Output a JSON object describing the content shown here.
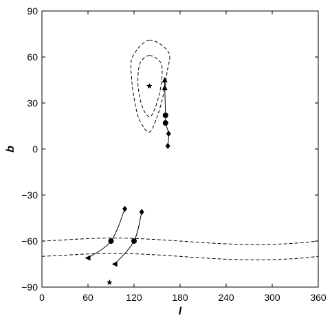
{
  "chart_data": {
    "type": "scatter",
    "xlabel": "l",
    "ylabel": "b",
    "xlim": [
      0,
      360
    ],
    "ylim": [
      -90,
      90
    ],
    "xticks": [
      0,
      60,
      120,
      180,
      240,
      300,
      360
    ],
    "yticks": [
      -90,
      -60,
      -30,
      0,
      30,
      60,
      90
    ],
    "grid": false,
    "legend": "none",
    "contours": [
      {
        "center": [
          140,
          41
        ],
        "values": [
          [
            140,
            71
          ],
          [
            165,
            63
          ],
          [
            163,
            50
          ],
          [
            158,
            35
          ],
          [
            150,
            21
          ],
          [
            140,
            11
          ],
          [
            128,
            18
          ],
          [
            122,
            28
          ],
          [
            117,
            45
          ],
          [
            118,
            60
          ]
        ]
      },
      {
        "center": [
          140,
          41
        ],
        "values": [
          [
            140,
            61
          ],
          [
            155,
            56
          ],
          [
            156,
            45
          ],
          [
            152,
            34
          ],
          [
            146,
            25
          ],
          [
            140,
            21
          ],
          [
            132,
            26
          ],
          [
            127,
            35
          ],
          [
            125,
            45
          ],
          [
            128,
            56
          ]
        ]
      }
    ],
    "band_lines": [
      {
        "values": [
          [
            0,
            -60
          ],
          [
            30,
            -59.2
          ],
          [
            60,
            -58.4
          ],
          [
            90,
            -58
          ],
          [
            120,
            -58.3
          ],
          [
            150,
            -59
          ],
          [
            180,
            -60
          ],
          [
            210,
            -61
          ],
          [
            240,
            -61.8
          ],
          [
            270,
            -62.2
          ],
          [
            300,
            -62.1
          ],
          [
            330,
            -61.4
          ],
          [
            360,
            -60
          ]
        ]
      },
      {
        "values": [
          [
            0,
            -70
          ],
          [
            30,
            -69.2
          ],
          [
            60,
            -68.4
          ],
          [
            90,
            -68
          ],
          [
            120,
            -68.3
          ],
          [
            150,
            -69
          ],
          [
            180,
            -70
          ],
          [
            210,
            -71
          ],
          [
            240,
            -71.8
          ],
          [
            270,
            -72.2
          ],
          [
            300,
            -72.1
          ],
          [
            330,
            -71.4
          ],
          [
            360,
            -70
          ]
        ]
      }
    ],
    "tracks": [
      {
        "values": [
          [
            164,
            2
          ],
          [
            165,
            10
          ],
          [
            161,
            17
          ],
          [
            161,
            22
          ],
          [
            160,
            40
          ],
          [
            160,
            45
          ]
        ]
      },
      {
        "values": [
          [
            108,
            -39
          ],
          [
            90,
            -60
          ],
          [
            60,
            -71
          ]
        ]
      },
      {
        "values": [
          [
            130,
            -41
          ],
          [
            120,
            -60
          ],
          [
            95,
            -75
          ]
        ]
      }
    ],
    "markers": [
      {
        "shape": "star",
        "x": 140,
        "y": 41
      },
      {
        "shape": "star",
        "x": 88,
        "y": -87
      },
      {
        "shape": "diamond",
        "x": 164,
        "y": 2
      },
      {
        "shape": "diamond",
        "x": 165,
        "y": 10
      },
      {
        "shape": "circle",
        "x": 161,
        "y": 17
      },
      {
        "shape": "circle",
        "x": 161,
        "y": 22
      },
      {
        "shape": "triangle-up",
        "x": 160,
        "y": 40
      },
      {
        "shape": "triangle-up",
        "x": 160,
        "y": 45
      },
      {
        "shape": "diamond",
        "x": 108,
        "y": -39
      },
      {
        "shape": "circle",
        "x": 90,
        "y": -60
      },
      {
        "shape": "triangle-left",
        "x": 60,
        "y": -71
      },
      {
        "shape": "diamond",
        "x": 130,
        "y": -41
      },
      {
        "shape": "circle",
        "x": 120,
        "y": -60
      },
      {
        "shape": "triangle-left",
        "x": 95,
        "y": -75
      }
    ]
  }
}
